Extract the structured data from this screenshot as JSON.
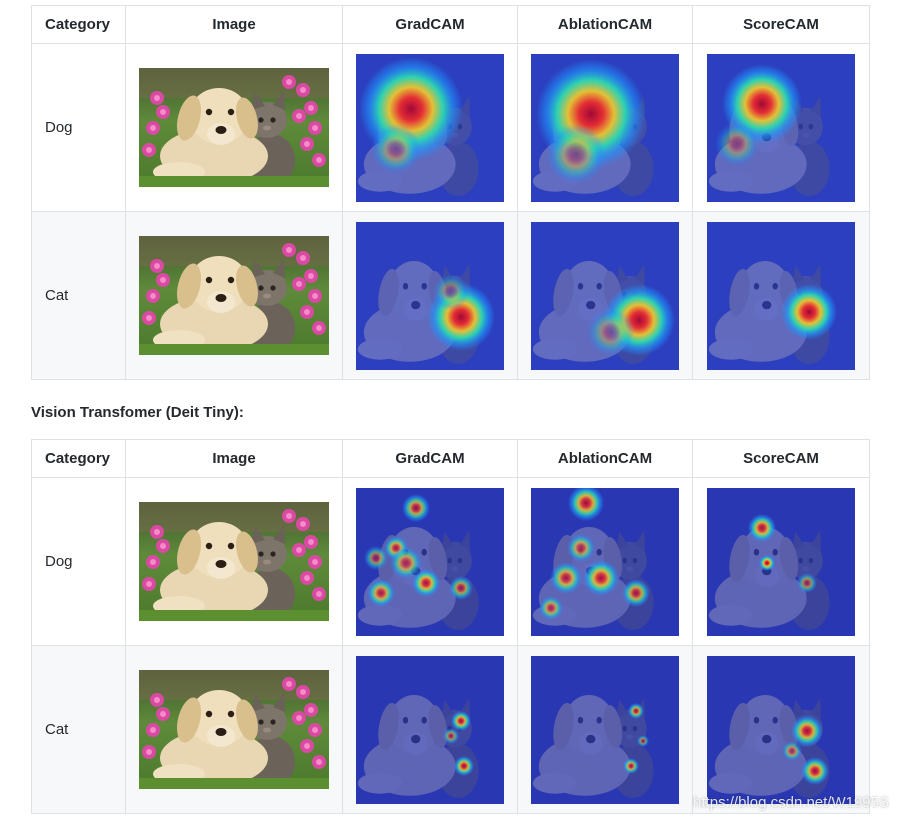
{
  "headers": [
    "Category",
    "Image",
    "GradCAM",
    "AblationCAM",
    "ScoreCAM"
  ],
  "section_title": "Vision Transfomer (Deit Tiny):",
  "tables": [
    {
      "rows": [
        {
          "category": "Dog",
          "focus": "dog",
          "style": "cnn"
        },
        {
          "category": "Cat",
          "focus": "cat",
          "style": "cnn"
        }
      ]
    },
    {
      "rows": [
        {
          "category": "Dog",
          "focus": "dog",
          "style": "vit"
        },
        {
          "category": "Cat",
          "focus": "cat",
          "style": "vit"
        }
      ]
    }
  ],
  "watermark": "https://blog.csdn.net/W1995S"
}
